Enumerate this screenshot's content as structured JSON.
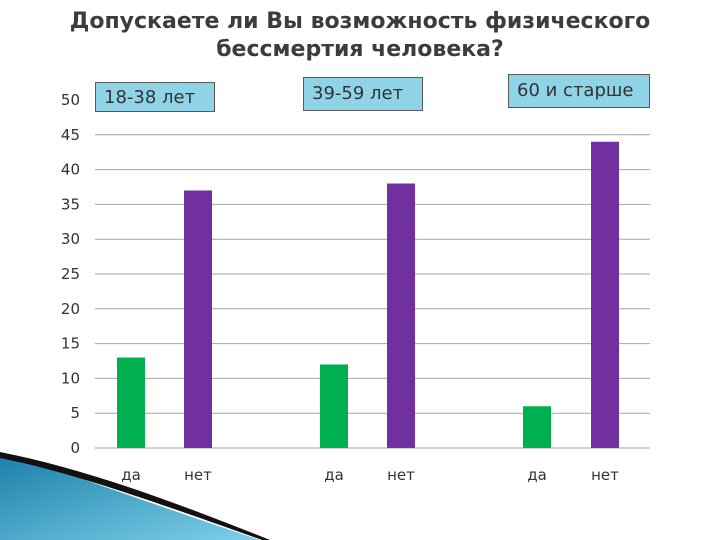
{
  "chart_data": {
    "type": "bar",
    "title_lines": [
      "Допускаете ли Вы возможность физического",
      "бессмертия человека?"
    ],
    "groups": [
      "18-38 лет",
      "39-59 лет",
      "60 и старше"
    ],
    "categories": [
      "да",
      "нет",
      "да",
      "нет",
      "да",
      "нет"
    ],
    "values": [
      13,
      37,
      12,
      38,
      6,
      44
    ],
    "y_ticks": [
      "0",
      "5",
      "10",
      "15",
      "20",
      "25",
      "30",
      "35",
      "40",
      "45",
      "50"
    ],
    "ylim": [
      0,
      50
    ],
    "grid": true,
    "legend": "none"
  },
  "colors": {
    "yes": "#00b050",
    "no": "#7030a0",
    "grid": "#a6a6a6",
    "group_box": "#8fd3e6"
  }
}
